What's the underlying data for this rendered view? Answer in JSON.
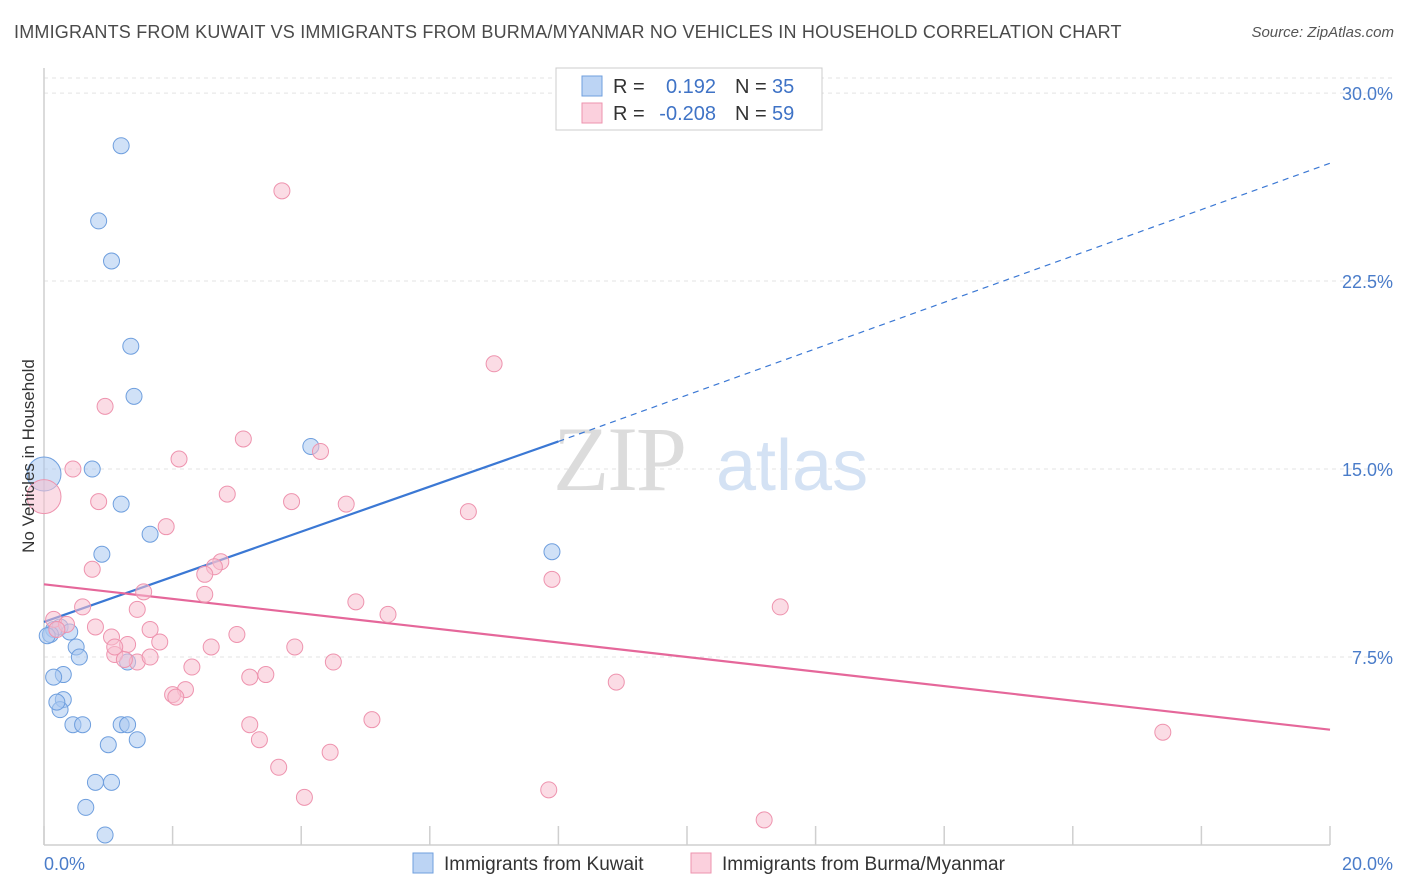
{
  "chart_data": {
    "type": "scatter",
    "title": "IMMIGRANTS FROM KUWAIT VS IMMIGRANTS FROM BURMA/MYANMAR NO VEHICLES IN HOUSEHOLD CORRELATION CHART",
    "source": "Source: ZipAtlas.com",
    "xlabel": "",
    "ylabel": "No Vehicles in Household",
    "xlim": [
      0,
      20
    ],
    "ylim": [
      0,
      31
    ],
    "x_tick_labels": {
      "left": "0.0%",
      "right": "20.0%"
    },
    "y_ticks": [
      {
        "value": 7.5,
        "label": "7.5%"
      },
      {
        "value": 15.0,
        "label": "15.0%"
      },
      {
        "value": 22.5,
        "label": "22.5%"
      },
      {
        "value": 30.0,
        "label": "30.0%"
      }
    ],
    "watermark": {
      "zip": "ZIP",
      "atlas": "atlas"
    },
    "legend": {
      "r_label": "R =",
      "n_label": "N =",
      "rows": [
        {
          "r_value": "0.192",
          "n_value": "35"
        },
        {
          "r_value": "-0.208",
          "n_value": "59"
        }
      ]
    },
    "series": [
      {
        "name": "Immigrants from Kuwait",
        "color": "#a9c8f0",
        "stroke": "#6f9fde",
        "line_color": "#3b78d4",
        "trend": {
          "x0": 0.0,
          "y0": 8.9,
          "x1": 8.0,
          "y1": 16.1,
          "dash_x1": 20.0,
          "dash_y1": 27.2
        },
        "points": [
          [
            1.2,
            27.9
          ],
          [
            0.85,
            24.9
          ],
          [
            1.05,
            23.3
          ],
          [
            1.35,
            19.9
          ],
          [
            1.4,
            17.9
          ],
          [
            0.0,
            14.8
          ],
          [
            0.75,
            15.0
          ],
          [
            1.2,
            13.6
          ],
          [
            1.65,
            12.4
          ],
          [
            0.9,
            11.6
          ],
          [
            4.15,
            15.9
          ],
          [
            7.9,
            11.7
          ],
          [
            0.15,
            8.6
          ],
          [
            0.25,
            8.7
          ],
          [
            0.4,
            8.5
          ],
          [
            0.5,
            7.9
          ],
          [
            0.55,
            7.5
          ],
          [
            0.1,
            8.4
          ],
          [
            0.3,
            6.8
          ],
          [
            0.15,
            6.7
          ],
          [
            1.3,
            7.3
          ],
          [
            0.3,
            5.8
          ],
          [
            0.25,
            5.4
          ],
          [
            0.45,
            4.8
          ],
          [
            0.6,
            4.8
          ],
          [
            1.2,
            4.8
          ],
          [
            1.3,
            4.8
          ],
          [
            1.45,
            4.2
          ],
          [
            1.0,
            4.0
          ],
          [
            0.8,
            2.5
          ],
          [
            1.05,
            2.5
          ],
          [
            0.65,
            1.5
          ],
          [
            0.95,
            0.4
          ],
          [
            0.05,
            8.35
          ],
          [
            0.2,
            5.7
          ]
        ]
      },
      {
        "name": "Immigrants from Burma/Myanmar",
        "color": "#f7bfd0",
        "stroke": "#ee93ae",
        "line_color": "#e5679a",
        "trend": {
          "x0": 0.0,
          "y0": 10.4,
          "x1": 20.0,
          "y1": 4.6
        },
        "points": [
          [
            3.7,
            26.1
          ],
          [
            7.0,
            19.2
          ],
          [
            0.95,
            17.5
          ],
          [
            3.1,
            16.2
          ],
          [
            4.3,
            15.7
          ],
          [
            2.1,
            15.4
          ],
          [
            0.45,
            15.0
          ],
          [
            0.0,
            13.9
          ],
          [
            2.85,
            14.0
          ],
          [
            3.85,
            13.7
          ],
          [
            0.85,
            13.7
          ],
          [
            4.7,
            13.6
          ],
          [
            6.6,
            13.3
          ],
          [
            1.9,
            12.7
          ],
          [
            2.75,
            11.3
          ],
          [
            0.75,
            11.0
          ],
          [
            2.65,
            11.1
          ],
          [
            2.5,
            10.8
          ],
          [
            1.55,
            10.1
          ],
          [
            2.5,
            10.0
          ],
          [
            4.85,
            9.7
          ],
          [
            11.45,
            9.5
          ],
          [
            0.6,
            9.5
          ],
          [
            1.45,
            9.4
          ],
          [
            5.35,
            9.2
          ],
          [
            0.15,
            9.0
          ],
          [
            0.35,
            8.8
          ],
          [
            0.8,
            8.7
          ],
          [
            1.65,
            8.6
          ],
          [
            3.0,
            8.4
          ],
          [
            1.05,
            8.3
          ],
          [
            1.8,
            8.1
          ],
          [
            1.3,
            8.0
          ],
          [
            3.9,
            7.9
          ],
          [
            2.6,
            7.9
          ],
          [
            1.1,
            7.6
          ],
          [
            1.45,
            7.3
          ],
          [
            1.65,
            7.5
          ],
          [
            4.5,
            7.3
          ],
          [
            2.3,
            7.1
          ],
          [
            3.45,
            6.8
          ],
          [
            3.2,
            6.7
          ],
          [
            8.9,
            6.5
          ],
          [
            7.9,
            10.6
          ],
          [
            2.2,
            6.2
          ],
          [
            2.0,
            6.0
          ],
          [
            2.05,
            5.9
          ],
          [
            5.1,
            5.0
          ],
          [
            3.2,
            4.8
          ],
          [
            17.4,
            4.5
          ],
          [
            3.35,
            4.2
          ],
          [
            4.45,
            3.7
          ],
          [
            3.65,
            3.1
          ],
          [
            7.85,
            2.2
          ],
          [
            4.05,
            1.9
          ],
          [
            11.2,
            1.0
          ],
          [
            0.2,
            8.6
          ],
          [
            1.25,
            7.4
          ],
          [
            1.1,
            7.9
          ]
        ]
      }
    ]
  }
}
